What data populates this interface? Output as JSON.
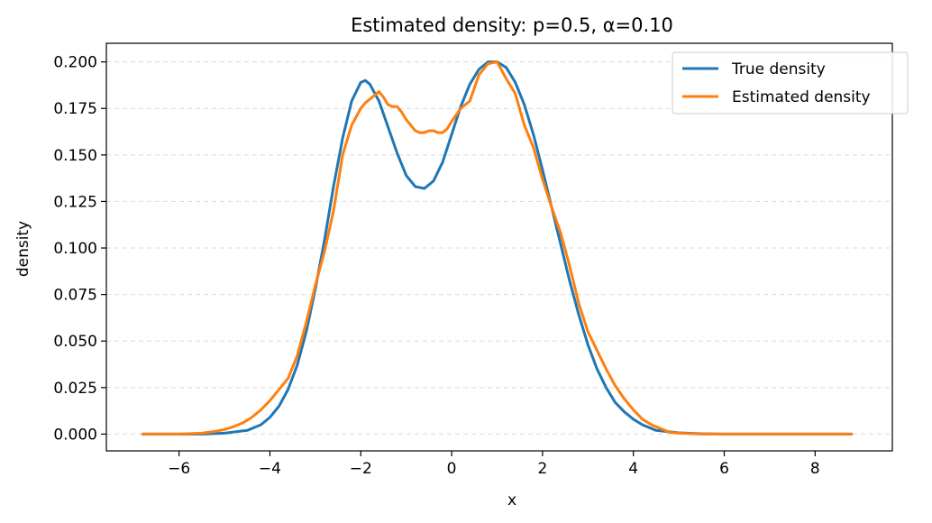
{
  "chart_data": {
    "type": "line",
    "title": "Estimated density: p=0.5, α=0.10",
    "xlabel": "x",
    "ylabel": "density",
    "xlim": [
      -7.6,
      9.7
    ],
    "ylim": [
      -0.009,
      0.21
    ],
    "xticks": [
      -6,
      -4,
      -2,
      0,
      2,
      4,
      6,
      8
    ],
    "xtick_labels": [
      "−6",
      "−4",
      "−2",
      "0",
      "2",
      "4",
      "6",
      "8"
    ],
    "yticks": [
      0.0,
      0.025,
      0.05,
      0.075,
      0.1,
      0.125,
      0.15,
      0.175,
      0.2
    ],
    "ytick_labels": [
      "0.000",
      "0.025",
      "0.050",
      "0.075",
      "0.100",
      "0.125",
      "0.150",
      "0.175",
      "0.200"
    ],
    "grid": "horizontal dashed",
    "legend_position": "top-right",
    "series": [
      {
        "name": "True density",
        "color": "#1f77b4",
        "x": [
          -6.8,
          -6.0,
          -5.5,
          -5.0,
          -4.5,
          -4.2,
          -4.0,
          -3.8,
          -3.6,
          -3.4,
          -3.2,
          -3.0,
          -2.8,
          -2.6,
          -2.4,
          -2.2,
          -2.0,
          -1.9,
          -1.8,
          -1.6,
          -1.4,
          -1.2,
          -1.0,
          -0.8,
          -0.6,
          -0.4,
          -0.2,
          0.0,
          0.2,
          0.4,
          0.6,
          0.8,
          1.0,
          1.2,
          1.4,
          1.6,
          1.8,
          2.0,
          2.2,
          2.4,
          2.6,
          2.8,
          3.0,
          3.2,
          3.4,
          3.6,
          3.8,
          4.0,
          4.2,
          4.5,
          5.0,
          5.5,
          6.0,
          7.0,
          8.0,
          8.8
        ],
        "y": [
          0.0,
          0.0,
          0.0,
          0.0005,
          0.002,
          0.005,
          0.009,
          0.015,
          0.024,
          0.037,
          0.055,
          0.078,
          0.104,
          0.133,
          0.159,
          0.179,
          0.189,
          0.19,
          0.188,
          0.179,
          0.165,
          0.151,
          0.139,
          0.133,
          0.132,
          0.136,
          0.146,
          0.161,
          0.176,
          0.188,
          0.196,
          0.2,
          0.2,
          0.197,
          0.189,
          0.177,
          0.161,
          0.142,
          0.122,
          0.102,
          0.082,
          0.064,
          0.048,
          0.035,
          0.025,
          0.017,
          0.012,
          0.008,
          0.005,
          0.002,
          0.0007,
          0.0002,
          0.0,
          0.0,
          0.0,
          0.0
        ]
      },
      {
        "name": "Estimated density",
        "color": "#ff7f0e",
        "x": [
          -6.8,
          -6.0,
          -5.5,
          -5.2,
          -5.0,
          -4.8,
          -4.6,
          -4.4,
          -4.2,
          -4.0,
          -3.9,
          -3.8,
          -3.6,
          -3.4,
          -3.2,
          -3.0,
          -2.8,
          -2.6,
          -2.4,
          -2.2,
          -2.0,
          -1.9,
          -1.8,
          -1.7,
          -1.6,
          -1.5,
          -1.4,
          -1.3,
          -1.2,
          -1.1,
          -1.0,
          -0.9,
          -0.8,
          -0.7,
          -0.6,
          -0.5,
          -0.4,
          -0.3,
          -0.2,
          -0.1,
          0.0,
          0.2,
          0.4,
          0.6,
          0.8,
          1.0,
          1.2,
          1.4,
          1.6,
          1.8,
          2.0,
          2.2,
          2.4,
          2.6,
          2.8,
          3.0,
          3.2,
          3.4,
          3.6,
          3.8,
          4.0,
          4.2,
          4.4,
          4.6,
          4.8,
          5.0,
          5.5,
          6.0,
          7.0,
          8.0,
          8.8
        ],
        "y": [
          0.0,
          0.0,
          0.0005,
          0.0015,
          0.0025,
          0.004,
          0.006,
          0.009,
          0.013,
          0.018,
          0.021,
          0.024,
          0.03,
          0.042,
          0.06,
          0.08,
          0.098,
          0.12,
          0.15,
          0.166,
          0.175,
          0.178,
          0.18,
          0.182,
          0.184,
          0.181,
          0.177,
          0.176,
          0.176,
          0.173,
          0.169,
          0.166,
          0.163,
          0.162,
          0.162,
          0.163,
          0.163,
          0.162,
          0.162,
          0.164,
          0.168,
          0.175,
          0.179,
          0.193,
          0.199,
          0.2,
          0.191,
          0.183,
          0.166,
          0.154,
          0.137,
          0.122,
          0.108,
          0.09,
          0.07,
          0.055,
          0.045,
          0.035,
          0.026,
          0.019,
          0.013,
          0.008,
          0.005,
          0.003,
          0.001,
          0.0005,
          0.0,
          0.0,
          0.0,
          0.0,
          0.0
        ]
      }
    ]
  }
}
